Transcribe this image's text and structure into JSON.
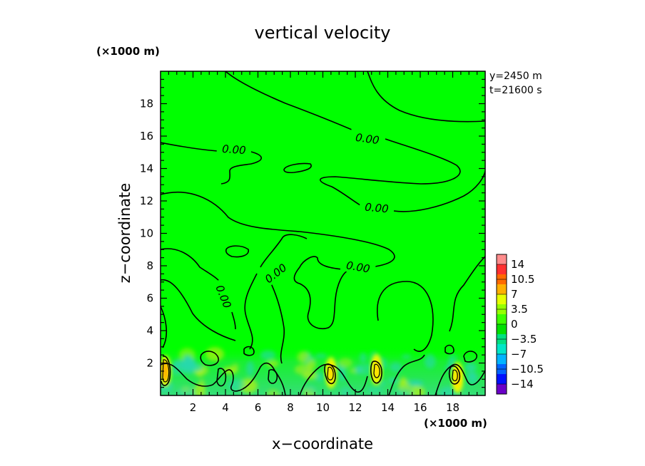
{
  "chart_data": {
    "type": "heatmap",
    "title": "vertical velocity",
    "xlabel": "x−coordinate",
    "ylabel": "z−coordinate",
    "x_unit": "(×1000 m)",
    "y_unit": "(×1000 m)",
    "xlim": [
      0,
      20
    ],
    "ylim": [
      0,
      20
    ],
    "x_ticks": [
      "2",
      "4",
      "6",
      "8",
      "10",
      "12",
      "14",
      "16",
      "18"
    ],
    "y_ticks": [
      "2",
      "4",
      "6",
      "8",
      "10",
      "12",
      "14",
      "16",
      "18"
    ],
    "x_tick_values": [
      2,
      4,
      6,
      8,
      10,
      12,
      14,
      16,
      18
    ],
    "y_tick_values": [
      2,
      4,
      6,
      8,
      10,
      12,
      14,
      16,
      18
    ],
    "annotations": [
      "y=2450 m",
      "t=21600 s"
    ],
    "contour_label": "0.00",
    "contour_level": 0,
    "colorbar": {
      "ticks": [
        "14",
        "10.5",
        "7",
        "3.5",
        "0",
        "−3.5",
        "−7",
        "−10.5",
        "−14"
      ],
      "levels": [
        14,
        10.5,
        7,
        3.5,
        0,
        -3.5,
        -7,
        -10.5,
        -14
      ],
      "colors": [
        "#ff8c8c",
        "#ff3030",
        "#ff6a00",
        "#ffb000",
        "#e6ff00",
        "#96ff00",
        "#3cff00",
        "#00e000",
        "#00e080",
        "#00e6c8",
        "#00b4ff",
        "#0064ff",
        "#0010ff",
        "#6a00c8"
      ]
    },
    "field": {
      "background_value": 0,
      "background_color": "#00ff00",
      "boundary_layer_top": 3,
      "updraft_cores": [
        {
          "x": 0.3,
          "z": 1.5,
          "max": 7
        },
        {
          "x": 10.5,
          "z": 1.4,
          "max": 5
        },
        {
          "x": 13.3,
          "z": 1.6,
          "max": 5
        },
        {
          "x": 18.3,
          "z": 1.1,
          "max": 5
        }
      ]
    }
  }
}
